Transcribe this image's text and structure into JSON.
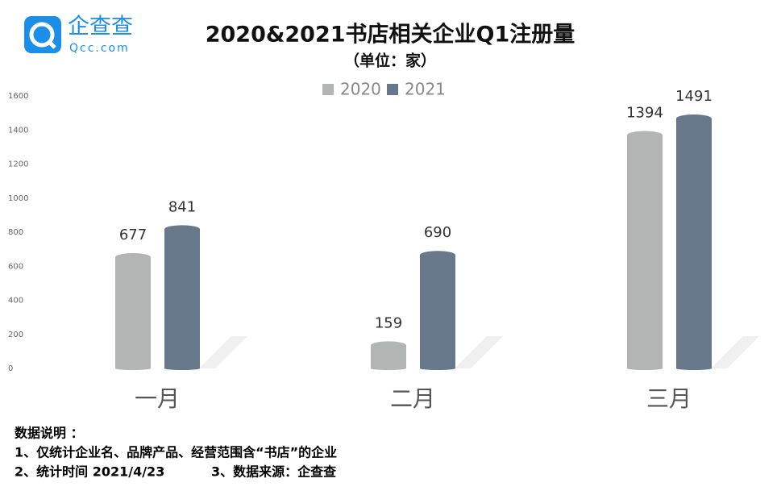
{
  "logo": {
    "name": "企查查",
    "url": "Qcc.com"
  },
  "chart_data": {
    "type": "bar",
    "title": "2020&2021书店相关企业Q1注册量",
    "subtitle": "（单位：家）",
    "categories": [
      "一月",
      "二月",
      "三月"
    ],
    "series": [
      {
        "name": "2020",
        "color": "#b3b4b4",
        "values": [
          677,
          159,
          1394
        ]
      },
      {
        "name": "2021",
        "color": "#67788a",
        "values": [
          841,
          690,
          1491
        ]
      }
    ],
    "ylim": [
      0,
      1600
    ],
    "yticks": [
      0,
      200,
      400,
      600,
      800,
      1000,
      1200,
      1400,
      1600
    ],
    "grid": false,
    "legend": "top"
  },
  "notes": {
    "heading": "数据说明 ：",
    "items": [
      "1、仅统计企业名、品牌产品、经营范围含“书店”的企业",
      "2、统计时间 2021/4/23",
      "3、数据来源：企查查"
    ]
  }
}
